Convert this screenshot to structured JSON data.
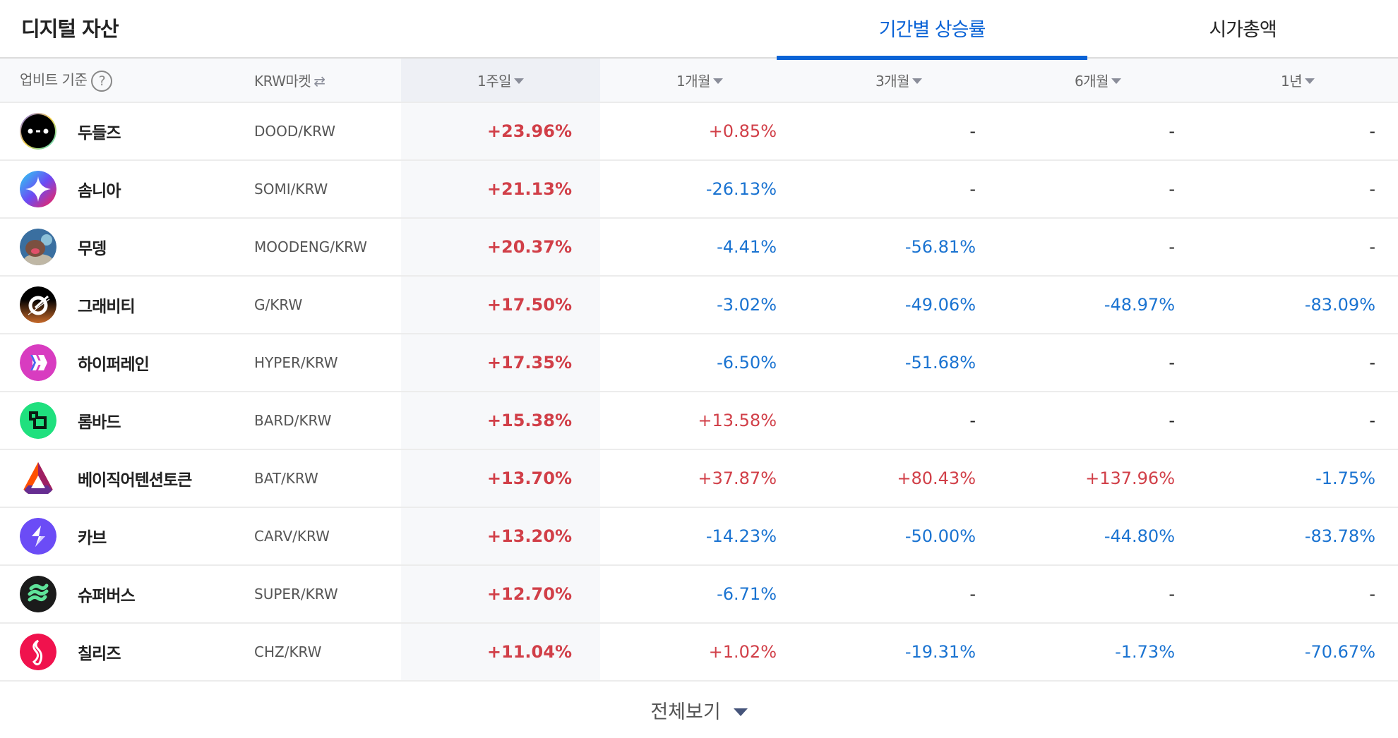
{
  "header": {
    "title": "디지털 자산",
    "tabs": [
      {
        "label": "기간별 상승률",
        "active": true
      },
      {
        "label": "시가총액",
        "active": false
      }
    ]
  },
  "table": {
    "columns": {
      "name": "업비트 기준",
      "help_icon": "?",
      "pair": "KRW마켓",
      "swap_icon": "⇄",
      "w1": "1주일",
      "m1": "1개월",
      "m3": "3개월",
      "m6": "6개월",
      "y1": "1년"
    },
    "sorted_column": "1주일",
    "rows": [
      {
        "name": "두들즈",
        "pair": "DOOD/KRW",
        "logo": "doodles-logo",
        "w1": "+23.96%",
        "m1": "+0.85%",
        "m3": "-",
        "m6": "-",
        "y1": "-"
      },
      {
        "name": "솜니아",
        "pair": "SOMI/KRW",
        "logo": "somnia-logo",
        "w1": "+21.13%",
        "m1": "-26.13%",
        "m3": "-",
        "m6": "-",
        "y1": "-"
      },
      {
        "name": "무뎅",
        "pair": "MOODENG/KRW",
        "logo": "moodeng-logo",
        "w1": "+20.37%",
        "m1": "-4.41%",
        "m3": "-56.81%",
        "m6": "-",
        "y1": "-"
      },
      {
        "name": "그래비티",
        "pair": "G/KRW",
        "logo": "gravity-logo",
        "w1": "+17.50%",
        "m1": "-3.02%",
        "m3": "-49.06%",
        "m6": "-48.97%",
        "y1": "-83.09%"
      },
      {
        "name": "하이퍼레인",
        "pair": "HYPER/KRW",
        "logo": "hyperlane-logo",
        "w1": "+17.35%",
        "m1": "-6.50%",
        "m3": "-51.68%",
        "m6": "-",
        "y1": "-"
      },
      {
        "name": "롬바드",
        "pair": "BARD/KRW",
        "logo": "lombard-logo",
        "w1": "+15.38%",
        "m1": "+13.58%",
        "m3": "-",
        "m6": "-",
        "y1": "-"
      },
      {
        "name": "베이직어텐션토큰",
        "pair": "BAT/KRW",
        "logo": "bat-logo",
        "w1": "+13.70%",
        "m1": "+37.87%",
        "m3": "+80.43%",
        "m6": "+137.96%",
        "y1": "-1.75%"
      },
      {
        "name": "카브",
        "pair": "CARV/KRW",
        "logo": "carv-logo",
        "w1": "+13.20%",
        "m1": "-14.23%",
        "m3": "-50.00%",
        "m6": "-44.80%",
        "y1": "-83.78%"
      },
      {
        "name": "슈퍼버스",
        "pair": "SUPER/KRW",
        "logo": "superverse-logo",
        "w1": "+12.70%",
        "m1": "-6.71%",
        "m3": "-",
        "m6": "-",
        "y1": "-"
      },
      {
        "name": "칠리즈",
        "pair": "CHZ/KRW",
        "logo": "chiliz-logo",
        "w1": "+11.04%",
        "m1": "+1.02%",
        "m3": "-19.31%",
        "m6": "-1.73%",
        "y1": "-70.67%"
      }
    ]
  },
  "footer": {
    "view_all": "전체보기"
  },
  "colors": {
    "accent": "#0a63d6",
    "up": "#d13f48",
    "down": "#1a73d1"
  }
}
